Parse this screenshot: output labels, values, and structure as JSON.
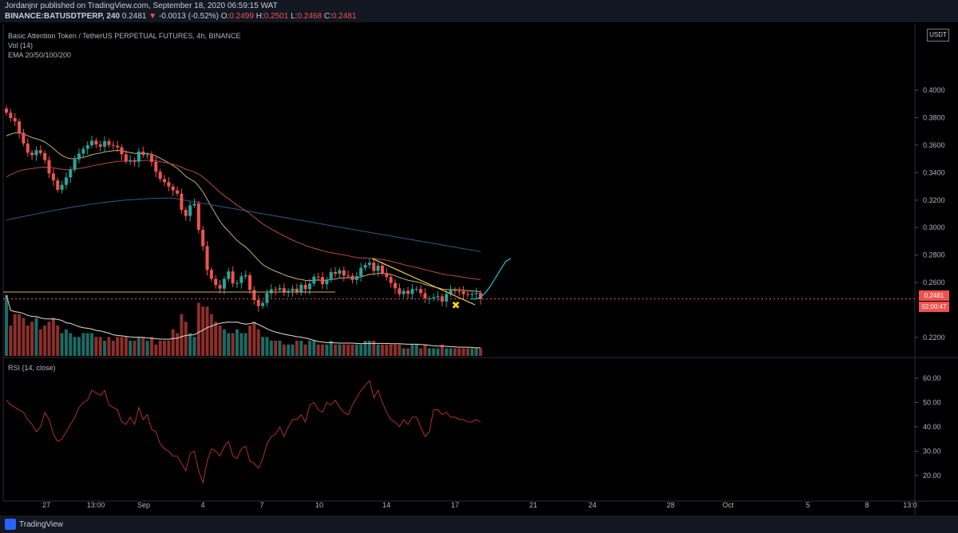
{
  "header": {
    "published": "Jordanjnr published on TradingView.com, September 18, 2020 06:59:15 WAT",
    "symbol": "BINANCE:BATUSDTPERP, 240",
    "last": "0.2481",
    "arrow": "▼",
    "change": "-0.0013 (-0.52%)",
    "o_label": "O:",
    "o_value": "0.2499",
    "h_label": "H:",
    "h_value": "0.2501",
    "l_label": "L:",
    "l_value": "0.2468",
    "c_label": "C:",
    "c_value": "0.2481"
  },
  "legend": {
    "title": "Basic Attention Token / TetherUS PERPETUAL FUTURES, 4h, BINANCE",
    "vol": "Vol (14)",
    "ema": "EMA 20/50/100/200",
    "rsi": "RSI (14, close)"
  },
  "price_axis": {
    "currency": "USDT",
    "last_price_badge": "0.2481",
    "countdown_badge": "02:00:47"
  },
  "footer": {
    "brand": "TradingView"
  },
  "colors": {
    "up": "#26a69a",
    "down": "#ef5350",
    "ema20": "#c7b26b",
    "ema50": "#b84a3e",
    "ema200": "#2e5c8a",
    "trendline": "#e8d04a",
    "projection": "#21b3c4",
    "rsi": "#b32d2d"
  },
  "chart_data": [
    {
      "type": "candlestick",
      "title": "Basic Attention Token / TetherUS PERPETUAL FUTURES, 4h, BINANCE",
      "y_ticks": [
        "0.4000",
        "0.3800",
        "0.3600",
        "0.3400",
        "0.3200",
        "0.3000",
        "0.2800",
        "0.2600",
        "0.2200"
      ],
      "ylim": [
        0.211,
        0.415
      ],
      "x_ticks": [
        "27",
        "13:00",
        "Sep",
        "4",
        "7",
        "10",
        "14",
        "17",
        "21",
        "24",
        "28",
        "Oct",
        "5",
        "8",
        "13:0"
      ],
      "close": [
        0.3836,
        0.3797,
        0.3773,
        0.369,
        0.3612,
        0.3545,
        0.3527,
        0.3563,
        0.3542,
        0.3491,
        0.3394,
        0.3343,
        0.3275,
        0.3311,
        0.3365,
        0.3422,
        0.3497,
        0.3539,
        0.3573,
        0.3599,
        0.3632,
        0.3605,
        0.3589,
        0.3629,
        0.3601,
        0.3596,
        0.3584,
        0.3533,
        0.3484,
        0.3491,
        0.3479,
        0.3553,
        0.3528,
        0.3528,
        0.3478,
        0.3407,
        0.3354,
        0.3331,
        0.3299,
        0.3271,
        0.3247,
        0.3129,
        0.3085,
        0.3161,
        0.3174,
        0.2984,
        0.2865,
        0.2692,
        0.2627,
        0.2582,
        0.2556,
        0.2627,
        0.2681,
        0.2594,
        0.2597,
        0.2645,
        0.2653,
        0.2546,
        0.2473,
        0.2429,
        0.2451,
        0.2523,
        0.2551,
        0.2548,
        0.2559,
        0.2529,
        0.2539,
        0.2555,
        0.2531,
        0.2583,
        0.2552,
        0.2592,
        0.2643,
        0.264,
        0.2588,
        0.2622,
        0.2677,
        0.2664,
        0.2689,
        0.2651,
        0.2649,
        0.2619,
        0.2647,
        0.2708,
        0.2728,
        0.2745,
        0.2685,
        0.2723,
        0.2669,
        0.264,
        0.2597,
        0.2558,
        0.2516,
        0.254,
        0.2518,
        0.2553,
        0.2553,
        0.2523,
        0.2485,
        0.2485,
        0.2493,
        0.25,
        0.2462,
        0.2517,
        0.2545,
        0.2539,
        0.2537,
        0.2516,
        0.2512,
        0.2517,
        0.2524,
        0.2481
      ],
      "ema200_end": 0.2825,
      "ema100_end": 0.2695,
      "ema50_end": 0.2565,
      "projection": [
        0.2481,
        0.248,
        0.2495,
        0.253,
        0.258,
        0.264,
        0.27,
        0.2755,
        0.2775
      ]
    },
    {
      "type": "line",
      "title": "RSI (14, close)",
      "y_ticks": [
        "60.00",
        "50.00",
        "40.00",
        "30.00",
        "20.00"
      ],
      "ylim": [
        15,
        64
      ],
      "values": [
        51,
        49,
        48,
        47,
        46,
        43,
        41,
        38,
        40,
        46,
        43,
        37,
        34,
        35,
        38,
        41,
        44,
        48,
        50,
        51,
        55,
        54,
        53,
        55,
        49,
        48,
        47,
        42,
        41,
        44,
        41,
        48,
        43,
        45,
        39,
        38,
        33,
        31,
        30,
        28,
        28,
        25,
        22,
        29,
        30,
        22,
        17,
        26,
        31,
        30,
        28,
        32,
        34,
        28,
        27,
        31,
        32,
        26,
        25,
        23,
        27,
        33,
        36,
        37,
        40,
        36,
        40,
        43,
        43,
        45,
        42,
        49,
        50,
        47,
        46,
        50,
        49,
        51,
        48,
        46,
        45,
        49,
        52,
        55,
        57,
        59,
        52,
        55,
        50,
        46,
        43,
        42,
        40,
        43,
        41,
        44,
        44,
        40,
        36,
        38,
        47,
        47,
        45,
        46,
        44,
        44,
        43,
        43,
        42,
        42,
        43,
        42
      ]
    },
    {
      "type": "bar",
      "title": "Vol (14)",
      "relative_values": [
        0.8,
        0.4,
        0.55,
        0.55,
        0.5,
        0.4,
        0.45,
        0.5,
        0.35,
        0.4,
        0.45,
        0.5,
        0.4,
        0.3,
        0.35,
        0.3,
        0.25,
        0.25,
        0.3,
        0.3,
        0.3,
        0.25,
        0.25,
        0.2,
        0.25,
        0.2,
        0.25,
        0.25,
        0.25,
        0.2,
        0.2,
        0.25,
        0.25,
        0.2,
        0.25,
        0.15,
        0.2,
        0.2,
        0.2,
        0.35,
        0.3,
        0.55,
        0.45,
        0.3,
        0.25,
        0.7,
        0.65,
        0.65,
        0.55,
        0.45,
        0.4,
        0.35,
        0.3,
        0.3,
        0.35,
        0.3,
        0.3,
        0.4,
        0.45,
        0.35,
        0.25,
        0.25,
        0.2,
        0.2,
        0.2,
        0.15,
        0.15,
        0.15,
        0.2,
        0.2,
        0.15,
        0.2,
        0.2,
        0.15,
        0.15,
        0.15,
        0.2,
        0.15,
        0.15,
        0.15,
        0.15,
        0.15,
        0.15,
        0.15,
        0.2,
        0.2,
        0.2,
        0.15,
        0.15,
        0.15,
        0.15,
        0.15,
        0.15,
        0.1,
        0.1,
        0.15,
        0.15,
        0.1,
        0.15,
        0.1,
        0.1,
        0.1,
        0.15,
        0.1,
        0.1,
        0.1,
        0.1,
        0.1,
        0.1,
        0.1,
        0.1,
        0.1
      ]
    }
  ]
}
